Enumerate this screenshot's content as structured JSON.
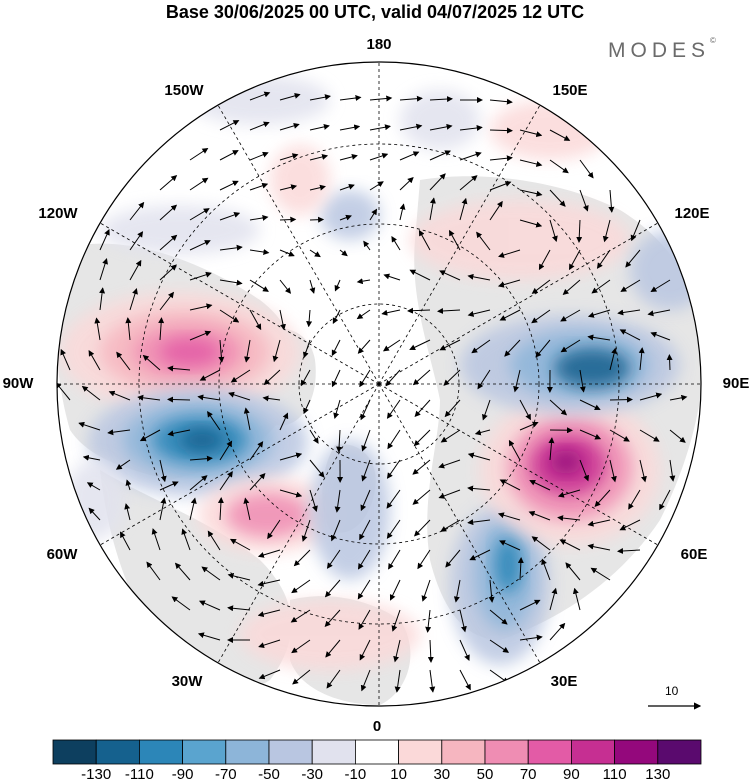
{
  "title": "Base 30/06/2025 00 UTC, valid 04/07/2025 12 UTC",
  "brand": {
    "name": "MODES",
    "mark": "©"
  },
  "longitude_labels": [
    {
      "id": "lon-180",
      "text": "180"
    },
    {
      "id": "lon-150e",
      "text": "150E"
    },
    {
      "id": "lon-120e",
      "text": "120E"
    },
    {
      "id": "lon-90e",
      "text": "90E"
    },
    {
      "id": "lon-60e",
      "text": "60E"
    },
    {
      "id": "lon-30e",
      "text": "30E"
    },
    {
      "id": "lon-0",
      "text": "0"
    },
    {
      "id": "lon-30w",
      "text": "30W"
    },
    {
      "id": "lon-60w",
      "text": "60W"
    },
    {
      "id": "lon-90w",
      "text": "90W"
    },
    {
      "id": "lon-120w",
      "text": "120W"
    },
    {
      "id": "lon-150w",
      "text": "150W"
    }
  ],
  "reference_vector": {
    "label": "10"
  },
  "colorbar": {
    "colors": [
      "#0d3f5f",
      "#15618e",
      "#2c86b8",
      "#5aa4cf",
      "#8db5d9",
      "#b9c6e1",
      "#e1e2ee",
      "#ffffff",
      "#fbd9d9",
      "#f6b6c0",
      "#ef8db3",
      "#e35ba6",
      "#c62f92",
      "#94087c",
      "#5a0a6e"
    ],
    "labels": [
      "-130",
      "-110",
      "-90",
      "-70",
      "-50",
      "-30",
      "-10",
      "10",
      "30",
      "50",
      "70",
      "90",
      "110",
      "130"
    ]
  },
  "colors": {
    "land": "#e6e6e6",
    "ocean": "#ffffff",
    "positive": "#ef8db3",
    "negative": "#2c86b8"
  }
}
